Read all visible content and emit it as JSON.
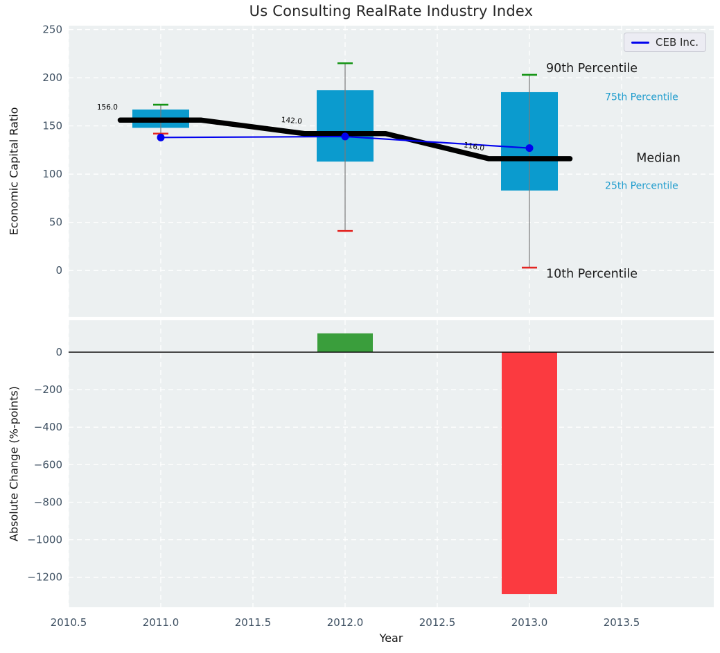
{
  "chart_data": {
    "type": "boxplot",
    "title": "Us Consulting RealRate Industry Index",
    "xlabel": "Year",
    "legend": {
      "label": "CEB Inc."
    },
    "xlim": [
      2010.5,
      2014.0
    ],
    "xticks": [
      {
        "value": 2010.5,
        "label": "2010.5"
      },
      {
        "value": 2011.0,
        "label": "2011.0"
      },
      {
        "value": 2011.5,
        "label": "2011.5"
      },
      {
        "value": 2012.0,
        "label": "2012.0"
      },
      {
        "value": 2012.5,
        "label": "2012.5"
      },
      {
        "value": 2013.0,
        "label": "2013.0"
      },
      {
        "value": 2013.5,
        "label": "2013.5"
      }
    ],
    "top_panel": {
      "ylabel": "Economic Capital Ratio",
      "ylim": [
        -48,
        254
      ],
      "yticks": [
        {
          "value": 0,
          "label": "0"
        },
        {
          "value": 50,
          "label": "50"
        },
        {
          "value": 100,
          "label": "100"
        },
        {
          "value": 150,
          "label": "150"
        },
        {
          "value": 200,
          "label": "200"
        },
        {
          "value": 250,
          "label": "250"
        }
      ],
      "years": [
        2011,
        2012,
        2013
      ],
      "box": {
        "p10": [
          142,
          41,
          3
        ],
        "p25": [
          148,
          113,
          83
        ],
        "median": [
          156,
          142,
          116
        ],
        "p75": [
          167,
          187,
          185
        ],
        "p90": [
          172,
          215,
          203
        ]
      },
      "company": {
        "name": "CEB Inc.",
        "x": [
          2011,
          2012,
          2013
        ],
        "y": [
          138,
          139,
          127
        ]
      },
      "median_labels": [
        {
          "text": "156.0",
          "x": 2010.71,
          "y": 170,
          "rot": 0
        },
        {
          "text": "142.0",
          "x": 2011.71,
          "y": 156,
          "rot": 5
        },
        {
          "text": "116.0",
          "x": 2012.7,
          "y": 129,
          "rot": 10
        }
      ],
      "side_labels": [
        {
          "text": "90th Percentile",
          "x": 2013.09,
          "y": 210,
          "size": "large"
        },
        {
          "text": "75th Percentile",
          "x": 2013.41,
          "y": 181,
          "size": "small"
        },
        {
          "text": "Median",
          "x": 2013.58,
          "y": 117,
          "size": "large"
        },
        {
          "text": "25th Percentile",
          "x": 2013.41,
          "y": 89,
          "size": "small"
        },
        {
          "text": "10th Percentile",
          "x": 2013.09,
          "y": -3,
          "size": "large"
        }
      ]
    },
    "bottom_panel": {
      "ylabel": "Absolute Change (%-points)",
      "ylim": [
        -1360,
        170
      ],
      "yticks": [
        {
          "value": 0,
          "label": "0"
        },
        {
          "value": -200,
          "label": "−200"
        },
        {
          "value": -400,
          "label": "−400"
        },
        {
          "value": -600,
          "label": "−600"
        },
        {
          "value": -800,
          "label": "−800"
        },
        {
          "value": -1000,
          "label": "−1000"
        },
        {
          "value": -1200,
          "label": "−1200"
        }
      ],
      "bars": [
        {
          "year": 2012,
          "value": 100,
          "color": "positive"
        },
        {
          "year": 2013,
          "value": -1290,
          "color": "negative"
        }
      ]
    },
    "colors": {
      "box": "#0b9bce",
      "whisker": "#7a7a7a",
      "cap_top": "#149414",
      "cap_bottom": "#e32522",
      "median_line": "#000000",
      "company_line": "#0202ee",
      "bar_positive": "#3a9e3c",
      "bar_negative": "#fb3a40",
      "plot_bg": "#ecf0f1",
      "grid": "#ffffff",
      "tick_text": "#3e5062",
      "label_small": "#1f9ccd",
      "label_large": "#1a1a1a"
    }
  }
}
